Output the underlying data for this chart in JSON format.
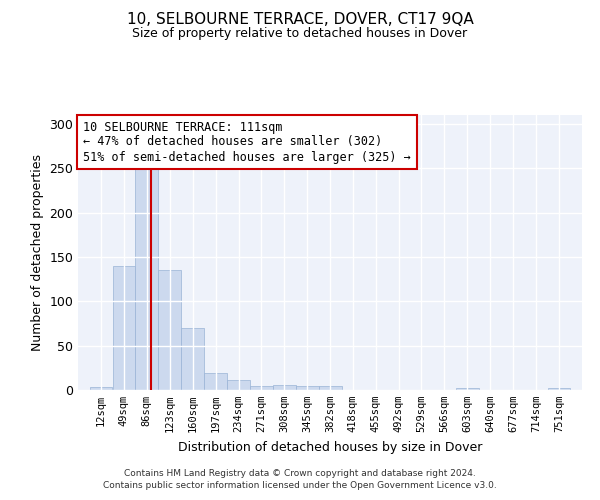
{
  "title": "10, SELBOURNE TERRACE, DOVER, CT17 9QA",
  "subtitle": "Size of property relative to detached houses in Dover",
  "xlabel": "Distribution of detached houses by size in Dover",
  "ylabel": "Number of detached properties",
  "property_size": 111,
  "annotation_line1": "10 SELBOURNE TERRACE: 111sqm",
  "annotation_line2": "← 47% of detached houses are smaller (302)",
  "annotation_line3": "51% of semi-detached houses are larger (325) →",
  "bar_color": "#ccd9ee",
  "bar_edge_color": "#99b3d6",
  "vline_color": "#cc0000",
  "background_color": "#eef2fa",
  "grid_color": "#ffffff",
  "bins": [
    12,
    49,
    86,
    123,
    160,
    197,
    234,
    271,
    308,
    345,
    382,
    418,
    455,
    492,
    529,
    566,
    603,
    640,
    677,
    714,
    751
  ],
  "bin_labels": [
    "12sqm",
    "49sqm",
    "86sqm",
    "123sqm",
    "160sqm",
    "197sqm",
    "234sqm",
    "271sqm",
    "308sqm",
    "345sqm",
    "382sqm",
    "418sqm",
    "455sqm",
    "492sqm",
    "529sqm",
    "566sqm",
    "603sqm",
    "640sqm",
    "677sqm",
    "714sqm",
    "751sqm"
  ],
  "counts": [
    3,
    140,
    252,
    135,
    70,
    19,
    11,
    5,
    6,
    4,
    4,
    0,
    0,
    0,
    0,
    0,
    2,
    0,
    0,
    0,
    2
  ],
  "ylim": [
    0,
    310
  ],
  "yticks": [
    0,
    50,
    100,
    150,
    200,
    250,
    300
  ],
  "footer_line1": "Contains HM Land Registry data © Crown copyright and database right 2024.",
  "footer_line2": "Contains public sector information licensed under the Open Government Licence v3.0."
}
